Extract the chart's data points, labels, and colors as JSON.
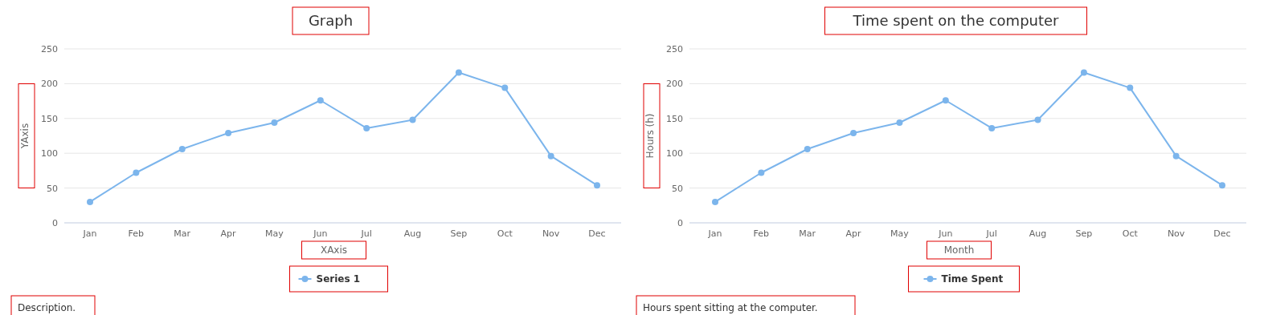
{
  "chart_data": [
    {
      "type": "line",
      "title": "Graph",
      "xlabel": "XAxis",
      "ylabel": "YAxis",
      "categories": [
        "Jan",
        "Feb",
        "Mar",
        "Apr",
        "May",
        "Jun",
        "Jul",
        "Aug",
        "Sep",
        "Oct",
        "Nov",
        "Dec"
      ],
      "series": [
        {
          "name": "Series 1",
          "color": "#7cb5ec",
          "values": [
            30,
            72,
            106,
            129,
            144,
            176,
            136,
            148,
            216,
            194,
            96,
            54
          ]
        }
      ],
      "ylim": [
        0,
        250
      ],
      "yticks": [
        0,
        50,
        100,
        150,
        200,
        250
      ],
      "grid": "y",
      "legend": "bottom",
      "marker": "circle",
      "annotations": [
        "Description."
      ]
    },
    {
      "type": "line",
      "title": "Time spent on the computer",
      "xlabel": "Month",
      "ylabel": "Hours (h)",
      "categories": [
        "Jan",
        "Feb",
        "Mar",
        "Apr",
        "May",
        "Jun",
        "Jul",
        "Aug",
        "Sep",
        "Oct",
        "Nov",
        "Dec"
      ],
      "series": [
        {
          "name": "Time Spent",
          "color": "#7cb5ec",
          "values": [
            30,
            72,
            106,
            129,
            144,
            176,
            136,
            148,
            216,
            194,
            96,
            54
          ]
        }
      ],
      "ylim": [
        0,
        250
      ],
      "yticks": [
        0,
        50,
        100,
        150,
        200,
        250
      ],
      "grid": "y",
      "legend": "bottom",
      "marker": "circle",
      "annotations": [
        "Hours spent sitting at the computer."
      ]
    }
  ]
}
